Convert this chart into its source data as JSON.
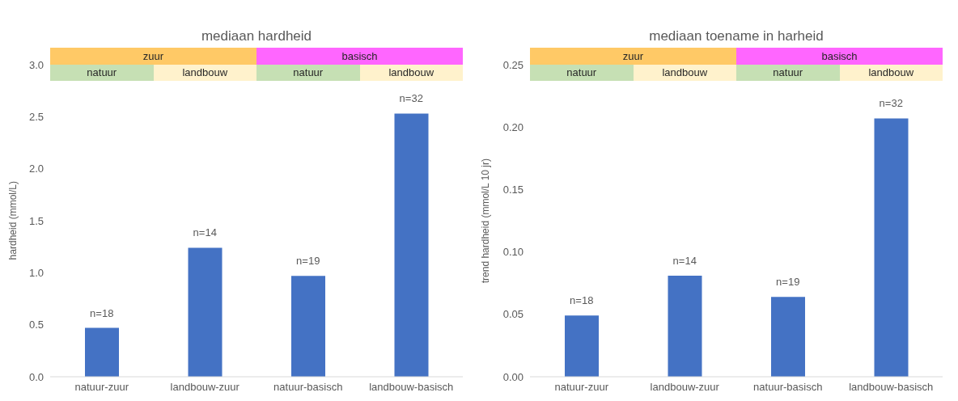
{
  "chart_data": [
    {
      "type": "bar",
      "title": "mediaan hardheid",
      "ylabel": "hardheid (mmol/L)",
      "categories": [
        "natuur-zuur",
        "landbouw-zuur",
        "natuur-basisch",
        "landbouw-basisch"
      ],
      "values": [
        0.47,
        1.24,
        0.97,
        2.53
      ],
      "color": "#4472c4",
      "ylim": [
        0,
        3
      ],
      "yticks": [
        {
          "value": 0,
          "label": "0.0"
        },
        {
          "value": 0.5,
          "label": "0.5"
        },
        {
          "value": 1,
          "label": "1.0"
        },
        {
          "value": 1.5,
          "label": "1.5"
        },
        {
          "value": 2,
          "label": "2.0"
        },
        {
          "value": 2.5,
          "label": "2.5"
        },
        {
          "value": 3,
          "label": "3.0"
        }
      ],
      "annotations": [
        "zuur",
        "basisch",
        "natuur",
        "landbouw",
        "natuur",
        "landbouw",
        {
          "text": "n=18",
          "x": "natuur-zuur",
          "y": 0.47
        },
        {
          "text": "n=14",
          "x": "landbouw-zuur",
          "y": 1.24
        },
        {
          "text": "n=19",
          "x": "natuur-basisch",
          "y": 0.97
        },
        {
          "text": "n=32",
          "x": "landbouw-basisch",
          "y": 2.53
        }
      ]
    },
    {
      "type": "bar",
      "title": "mediaan toename in harheid",
      "ylabel": "trend hardheid (mmol/L 10 jr)",
      "categories": [
        "natuur-zuur",
        "landbouw-zuur",
        "natuur-basisch",
        "landbouw-basisch"
      ],
      "values": [
        0.049,
        0.081,
        0.064,
        0.207
      ],
      "color": "#4472c4",
      "ylim": [
        0,
        0.25
      ],
      "yticks": [
        {
          "value": 0,
          "label": "0.00"
        },
        {
          "value": 0.05,
          "label": "0.05"
        },
        {
          "value": 0.1,
          "label": "0.10"
        },
        {
          "value": 0.15,
          "label": "0.15"
        },
        {
          "value": 0.2,
          "label": "0.20"
        },
        {
          "value": 0.25,
          "label": "0.25"
        }
      ],
      "annotations": [
        "zuur",
        "basisch",
        "natuur",
        "landbouw",
        "natuur",
        "landbouw",
        {
          "text": "n=18",
          "x": "natuur-zuur",
          "y": 0.049
        },
        {
          "text": "n=14",
          "x": "landbouw-zuur",
          "y": 0.081
        },
        {
          "text": "n=19",
          "x": "natuur-basisch",
          "y": 0.064
        },
        {
          "text": "n=32",
          "x": "landbouw-basisch",
          "y": 0.207
        }
      ]
    }
  ]
}
